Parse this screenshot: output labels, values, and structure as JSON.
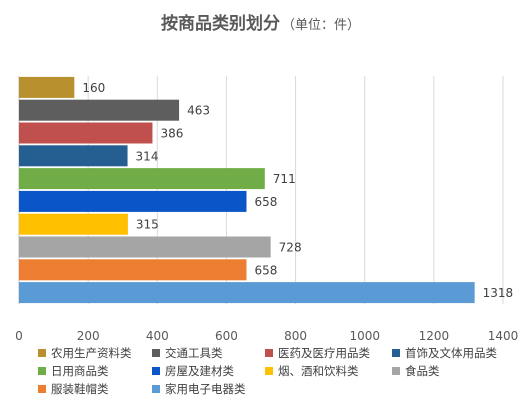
{
  "chart_data": {
    "type": "bar",
    "orientation": "horizontal",
    "title": "按商品类别划分",
    "subtitle": "（单位：件）",
    "categories": [
      "农用生产资料类",
      "交通工具类",
      "医药及医疗用品类",
      "首饰及文体用品类",
      "日用商品类",
      "房屋及建材类",
      "烟、酒和饮料类",
      "食品类",
      "服装鞋帽类",
      "家用电子电器类"
    ],
    "values": [
      160,
      463,
      386,
      314,
      711,
      658,
      315,
      728,
      658,
      1318
    ],
    "colors": [
      "#B8902E",
      "#5E5E5E",
      "#C0504D",
      "#255E91",
      "#70AD47",
      "#0A55C8",
      "#FFC000",
      "#A5A5A5",
      "#ED7D31",
      "#5B9BD5"
    ],
    "x_ticks": [
      "0",
      "200",
      "400",
      "600",
      "800",
      "1000",
      "1200",
      "1400"
    ],
    "xlim": [
      0,
      1400
    ],
    "grid": true,
    "legend_position": "bottom",
    "legend_rows": [
      [
        "农用生产资料类",
        "交通工具类",
        "医药及医疗用品类",
        "首饰及文体用品类"
      ],
      [
        "日用商品类",
        "房屋及建材类",
        "烟、酒和饮料类",
        "食品类"
      ],
      [
        "服装鞋帽类",
        "家用电子电器类"
      ]
    ]
  }
}
